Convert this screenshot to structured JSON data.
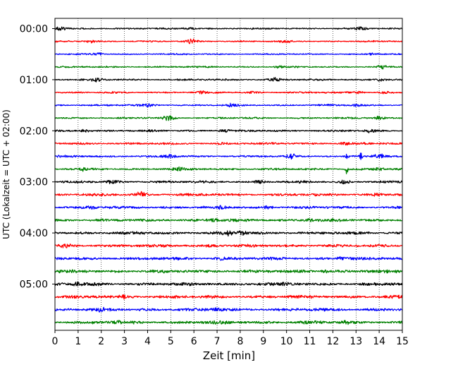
{
  "chart_data": {
    "type": "line",
    "title": "",
    "xlabel": "Zeit  [min]",
    "ylabel": "UTC (Lokalzeit = UTC + 02:00)",
    "xlim": [
      0,
      15
    ],
    "xticks": [
      "0",
      "1",
      "2",
      "3",
      "4",
      "5",
      "6",
      "7",
      "8",
      "9",
      "10",
      "11",
      "12",
      "13",
      "14",
      "15"
    ],
    "yticks": [
      "00:00",
      "01:00",
      "02:00",
      "03:00",
      "04:00",
      "05:00"
    ],
    "grid": "vertical dotted",
    "trace_interval_min": 15,
    "trace_colors": [
      "#000000",
      "#ff0000",
      "#0000ff",
      "#008000"
    ],
    "traces": [
      {
        "start": "00:00",
        "amplitude": 0.3,
        "events": [
          [
            0.2,
            0.9
          ],
          [
            5.8,
            0.6
          ],
          [
            13.2,
            0.8
          ]
        ]
      },
      {
        "start": "00:15",
        "amplitude": 0.3,
        "events": [
          [
            1.6,
            0.5
          ],
          [
            5.9,
            0.9
          ],
          [
            10.0,
            0.6
          ]
        ]
      },
      {
        "start": "00:30",
        "amplitude": 0.28,
        "events": [
          [
            1.9,
            0.5
          ],
          [
            13.7,
            0.4
          ]
        ]
      },
      {
        "start": "00:45",
        "amplitude": 0.3,
        "events": [
          [
            9.7,
            0.4
          ],
          [
            14.1,
            0.7
          ]
        ]
      },
      {
        "start": "01:00",
        "amplitude": 0.35,
        "events": [
          [
            1.8,
            0.8
          ],
          [
            9.5,
            0.8
          ],
          [
            14.1,
            0.6
          ]
        ]
      },
      {
        "start": "01:15",
        "amplitude": 0.35,
        "events": [
          [
            6.3,
            0.5
          ],
          [
            8.6,
            0.5
          ],
          [
            13.1,
            0.5
          ],
          [
            14.2,
            0.5
          ]
        ]
      },
      {
        "start": "01:30",
        "amplitude": 0.35,
        "events": [
          [
            4.1,
            0.5
          ],
          [
            7.7,
            0.6
          ],
          [
            13.0,
            0.4
          ]
        ]
      },
      {
        "start": "01:45",
        "amplitude": 0.35,
        "events": [
          [
            4.9,
            1.2
          ],
          [
            14.0,
            0.9
          ]
        ]
      },
      {
        "start": "02:00",
        "amplitude": 0.4,
        "events": [
          [
            1.3,
            0.5
          ],
          [
            7.3,
            0.5
          ],
          [
            13.6,
            0.6
          ]
        ]
      },
      {
        "start": "02:15",
        "amplitude": 0.42,
        "events": [
          [
            7.2,
            0.4
          ],
          [
            12.5,
            0.5
          ]
        ]
      },
      {
        "start": "02:30",
        "amplitude": 0.4,
        "events": [
          [
            5.0,
            0.7
          ],
          [
            10.2,
            0.8
          ],
          [
            12.6,
            1.5
          ],
          [
            13.2,
            2.4
          ],
          [
            14.0,
            0.8
          ]
        ]
      },
      {
        "start": "02:45",
        "amplitude": 0.42,
        "events": [
          [
            1.2,
            0.6
          ],
          [
            5.3,
            0.6
          ],
          [
            12.6,
            3.0
          ],
          [
            14.0,
            0.5
          ]
        ]
      },
      {
        "start": "03:00",
        "amplitude": 0.45,
        "events": [
          [
            2.5,
            0.6
          ],
          [
            8.8,
            0.7
          ],
          [
            12.5,
            0.8
          ]
        ]
      },
      {
        "start": "03:15",
        "amplitude": 0.5,
        "events": [
          [
            3.7,
            1.2
          ],
          [
            13.9,
            0.6
          ]
        ]
      },
      {
        "start": "03:30",
        "amplitude": 0.5,
        "events": [
          [
            1.5,
            0.6
          ],
          [
            7.2,
            0.5
          ],
          [
            9.2,
            0.6
          ]
        ]
      },
      {
        "start": "03:45",
        "amplitude": 0.55,
        "events": [
          [
            6.9,
            0.6
          ],
          [
            11.0,
            0.6
          ]
        ]
      },
      {
        "start": "04:00",
        "amplitude": 0.55,
        "events": [
          [
            7.5,
            1.1
          ],
          [
            8.1,
            0.9
          ]
        ]
      },
      {
        "start": "04:15",
        "amplitude": 0.55,
        "events": [
          [
            0.5,
            0.5
          ],
          [
            6.8,
            0.5
          ]
        ]
      },
      {
        "start": "04:30",
        "amplitude": 0.55,
        "events": [
          [
            7.2,
            0.6
          ],
          [
            12.4,
            0.8
          ]
        ]
      },
      {
        "start": "04:45",
        "amplitude": 0.6,
        "events": [
          [
            11.7,
            0.6
          ]
        ]
      },
      {
        "start": "05:00",
        "amplitude": 0.6,
        "events": [
          [
            1.0,
            0.7
          ],
          [
            9.0,
            0.5
          ]
        ]
      },
      {
        "start": "05:15",
        "amplitude": 0.6,
        "events": [
          [
            3.0,
            0.5
          ]
        ]
      },
      {
        "start": "05:30",
        "amplitude": 0.6,
        "events": [
          [
            2.0,
            0.4
          ],
          [
            7.0,
            0.4
          ]
        ]
      },
      {
        "start": "05:45",
        "amplitude": 0.6,
        "events": [
          [
            2.6,
            0.5
          ],
          [
            12.6,
            0.4
          ]
        ]
      }
    ]
  }
}
